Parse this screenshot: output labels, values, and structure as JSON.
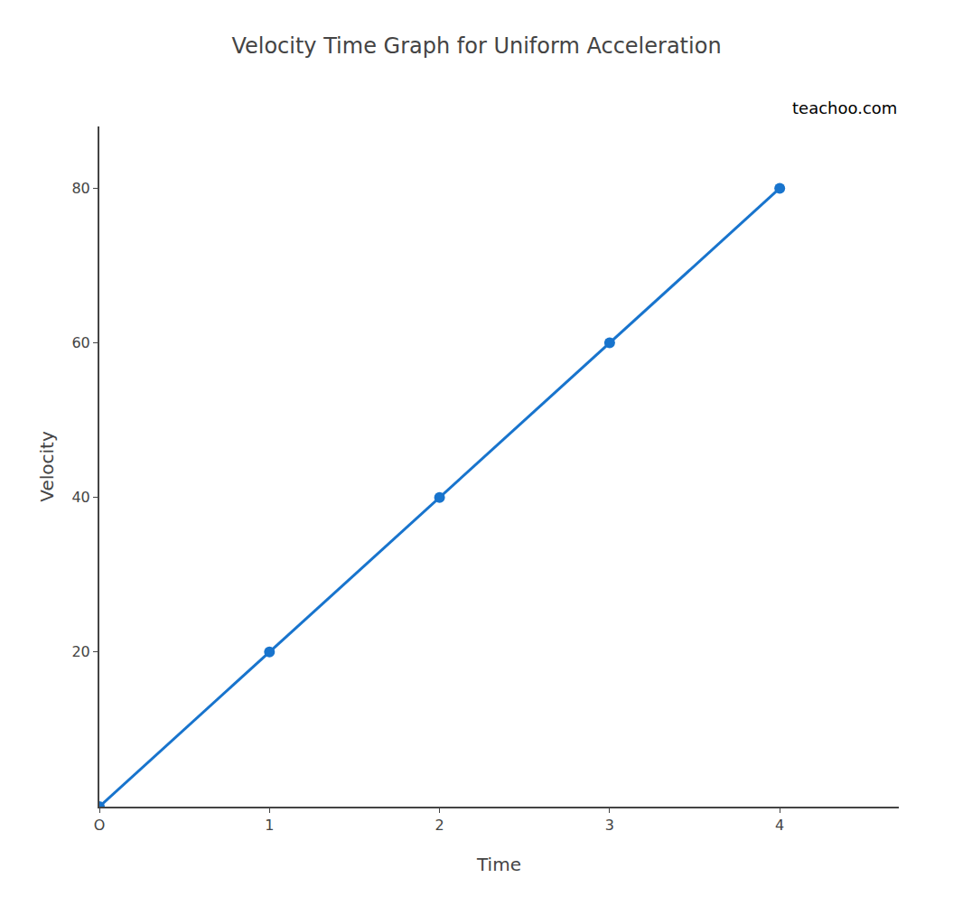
{
  "chart_data": {
    "type": "line",
    "title": "Velocity Time Graph for Uniform Acceleration",
    "x_label": "Time",
    "y_label": "Velocity",
    "annotations": [
      "teachoo.com"
    ],
    "x": [
      0,
      1,
      2,
      3,
      4
    ],
    "values": [
      0,
      20,
      40,
      60,
      80
    ],
    "color": "#1874CD",
    "marker": "circle",
    "xlim": [
      0,
      4.7
    ],
    "ylim": [
      0,
      88
    ],
    "xticks": [
      {
        "value": 0,
        "label": "O"
      },
      1,
      2,
      3,
      4
    ],
    "yticks": [
      20,
      40,
      60,
      80
    ],
    "grid": false
  }
}
